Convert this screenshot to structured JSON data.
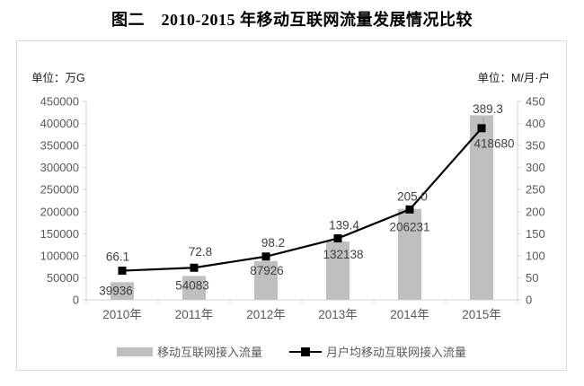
{
  "title": "图二　2010-2015 年移动互联网流量发展情况比较",
  "units": {
    "left": "单位：万G",
    "right": "单位：M/月·户"
  },
  "legend": [
    {
      "label": "移动互联网接入流量",
      "type": "bar"
    },
    {
      "label": "月户均移动互联网接入流量",
      "type": "line"
    }
  ],
  "colors": {
    "bar": "#bfbfbf",
    "line": "#000000",
    "marker": "#000000",
    "axis": "#d9d9d9",
    "tick_label": "#595959",
    "data_label": "#3f3f3f",
    "frame_border": "#d9d9d9",
    "leader": "#a6a6a6"
  },
  "chart_data": {
    "type": "bar",
    "subtype": "bar+line combo",
    "title": "图二　2010-2015 年移动互联网流量发展情况比较",
    "categories": [
      "2010年",
      "2011年",
      "2012年",
      "2013年",
      "2014年",
      "2015年"
    ],
    "series": [
      {
        "name": "移动互联网接入流量",
        "type": "bar",
        "axis": "left",
        "values": [
          39936,
          54083,
          87926,
          132138,
          206231,
          418680
        ],
        "labels": [
          "39936",
          "54083",
          "87926",
          "132138",
          "206231",
          "418680"
        ]
      },
      {
        "name": "月户均移动互联网接入流量",
        "type": "line",
        "axis": "right",
        "values": [
          66.1,
          72.8,
          98.2,
          139.4,
          205.0,
          389.3
        ],
        "labels": [
          "66.1",
          "72.8",
          "98.2",
          "139.4",
          "205.0",
          "389.3"
        ]
      }
    ],
    "left_axis": {
      "label": "单位：万G",
      "min": 0,
      "max": 450000,
      "step": 50000
    },
    "right_axis": {
      "label": "单位：M/月·户",
      "min": 0,
      "max": 450,
      "step": 50
    },
    "grid": false,
    "legend_position": "bottom"
  }
}
